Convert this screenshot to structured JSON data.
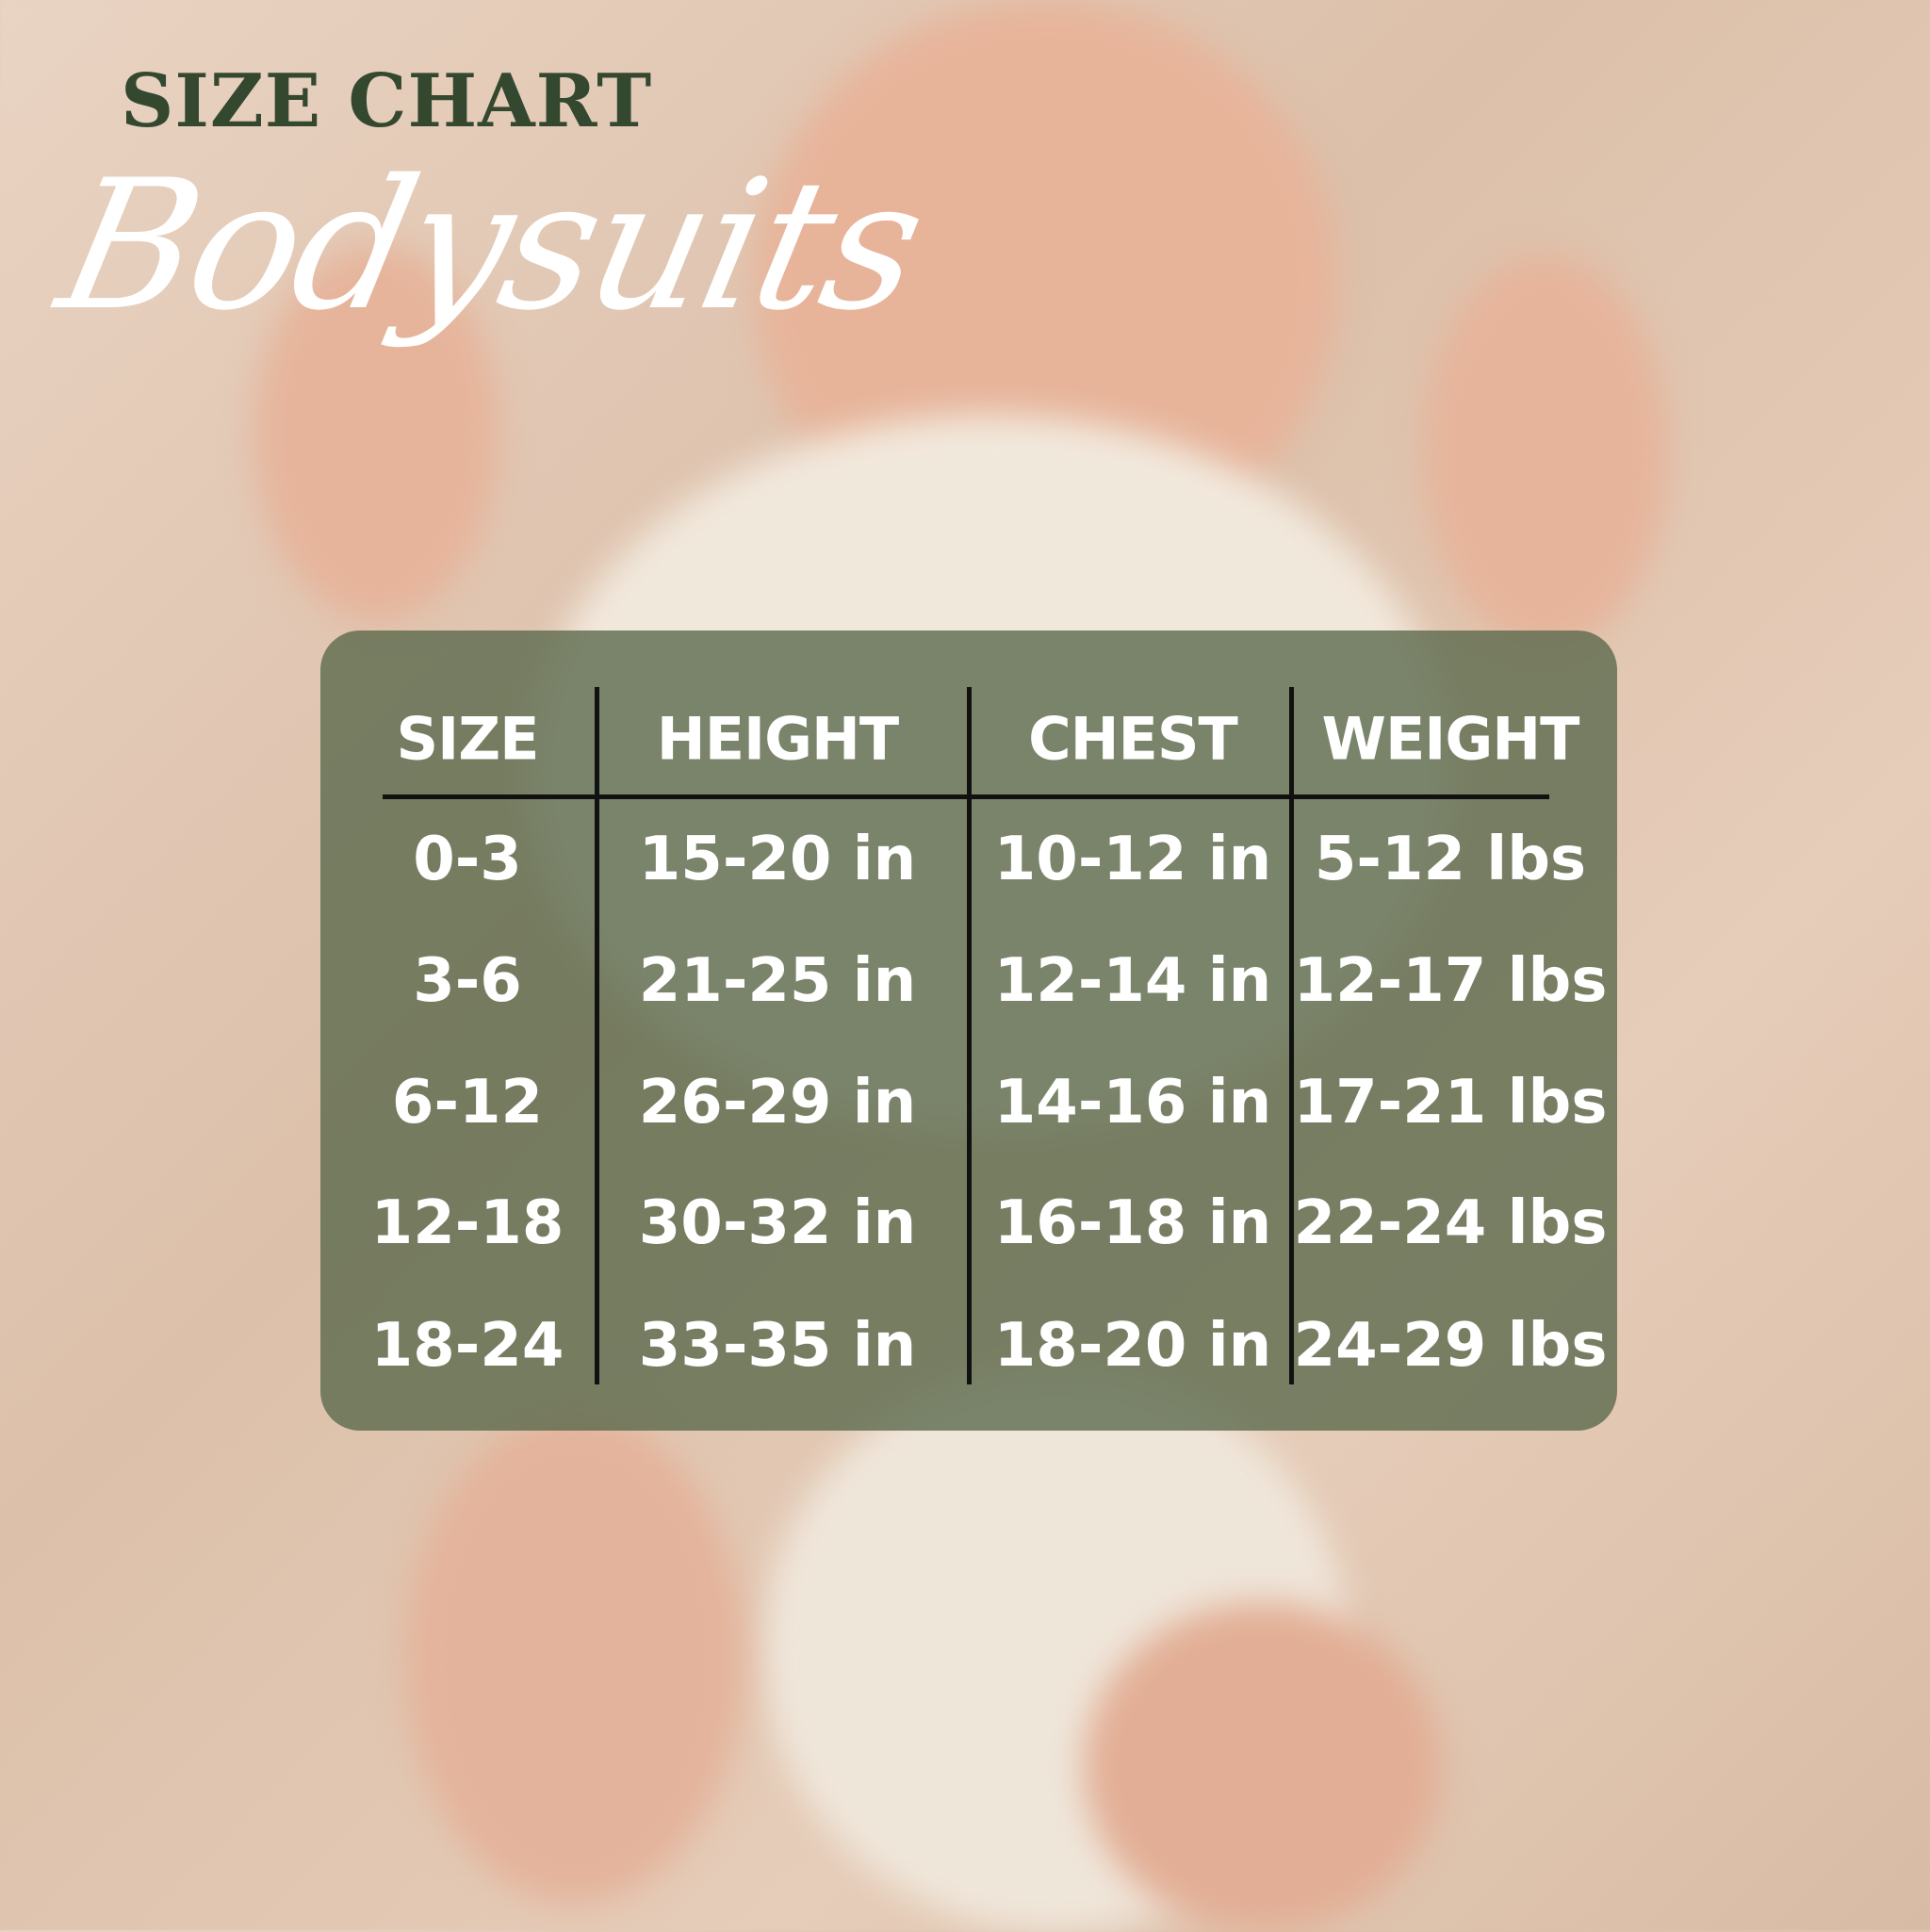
{
  "heading": "SIZE CHART",
  "subheading": "Bodysuits",
  "colors": {
    "title": "#34482f",
    "table_bg": "#58684a",
    "text": "#ffffff"
  },
  "table": {
    "headers": [
      "SIZE",
      "HEIGHT",
      "CHEST",
      "WEIGHT"
    ],
    "rows": [
      [
        "0-3",
        "15-20 in",
        "10-12 in",
        "5-12 lbs"
      ],
      [
        "3-6",
        "21-25 in",
        "12-14 in",
        "12-17 lbs"
      ],
      [
        "6-12",
        "26-29 in",
        "14-16 in",
        "17-21 lbs"
      ],
      [
        "12-18",
        "30-32 in",
        "16-18 in",
        "22-24 lbs"
      ],
      [
        "18-24",
        "33-35 in",
        "18-20 in",
        "24-29 lbs"
      ]
    ]
  }
}
